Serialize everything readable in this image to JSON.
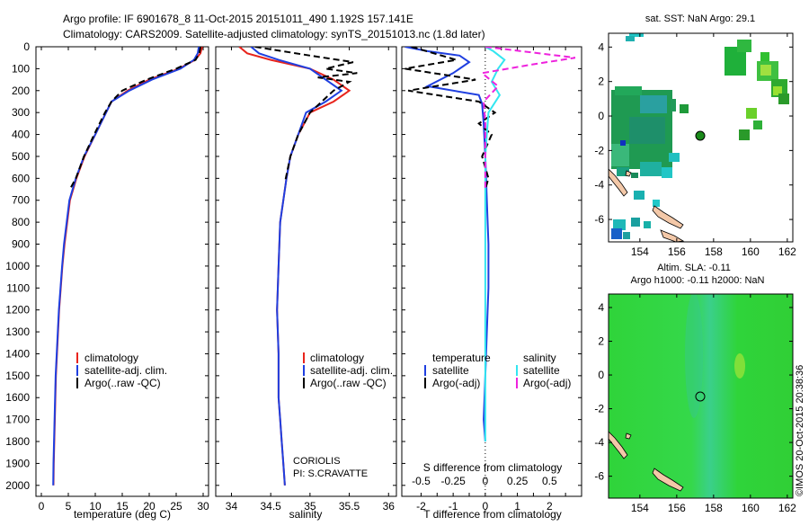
{
  "title": {
    "line1": "Argo profile: IF 6901678_8 11-Oct-2015 20151011_490 1.192S 157.141E",
    "line2": "Climatology: CARS2009. Satellite-adjusted climatology: synTS_20151013.nc (1.8d later)"
  },
  "colors": {
    "clim": "#e8241c",
    "sat": "#1f3fe0",
    "argo": "#000000",
    "sat_s": "#33e6f0",
    "argo_s": "#ee22dd"
  },
  "chart_data": [
    {
      "type": "line",
      "name": "temperature-profile",
      "xlabel": "temperature (deg C)",
      "ylabel": "",
      "xlim": [
        -1,
        31
      ],
      "ylim": [
        2050,
        0
      ],
      "xticks": [
        0,
        5,
        10,
        15,
        20,
        25,
        30
      ],
      "yticks": [
        0,
        100,
        200,
        300,
        400,
        500,
        600,
        700,
        800,
        900,
        1000,
        1100,
        1200,
        1300,
        1400,
        1500,
        1600,
        1700,
        1800,
        1900,
        2000
      ],
      "legend": {
        "position": "bottom-center",
        "entries": [
          "climatology",
          "satellite-adj. clim.",
          "Argo(..raw -QC)"
        ]
      },
      "series": [
        {
          "name": "climatology",
          "color": "#e8241c",
          "dash": false,
          "x": [
            29.8,
            29.5,
            28.5,
            25.5,
            20.0,
            16.0,
            13.0,
            12.0,
            10.0,
            8.0,
            6.5,
            5.3,
            4.8,
            4.3,
            3.9,
            3.6,
            3.3,
            3.1,
            2.9,
            2.7,
            2.6,
            2.5,
            2.4,
            2.3,
            2.25
          ],
          "y": [
            0,
            30,
            60,
            100,
            150,
            200,
            250,
            300,
            400,
            500,
            600,
            700,
            800,
            900,
            1000,
            1100,
            1200,
            1300,
            1400,
            1500,
            1600,
            1700,
            1800,
            1900,
            2000
          ]
        },
        {
          "name": "satellite-adj. clim.",
          "color": "#1f3fe0",
          "dash": false,
          "x": [
            29.2,
            29.0,
            28.3,
            25.8,
            20.5,
            16.3,
            13.0,
            12.0,
            10.0,
            7.9,
            6.4,
            5.2,
            4.7,
            4.2,
            3.85,
            3.55,
            3.25,
            3.05,
            2.85,
            2.65,
            2.55,
            2.45,
            2.35,
            2.25,
            2.2
          ],
          "y": [
            0,
            30,
            60,
            100,
            150,
            200,
            250,
            300,
            400,
            500,
            600,
            700,
            800,
            900,
            1000,
            1100,
            1200,
            1300,
            1400,
            1500,
            1600,
            1700,
            1800,
            1900,
            2000
          ]
        },
        {
          "name": "Argo(..raw -QC)",
          "color": "#000000",
          "dash": true,
          "x": [
            29.5,
            29.3,
            28.6,
            25.0,
            19.5,
            15.0,
            13.0,
            11.8,
            9.8,
            7.9,
            6.4,
            5.3
          ],
          "y": [
            0,
            30,
            60,
            100,
            150,
            200,
            250,
            300,
            400,
            500,
            600,
            650
          ]
        }
      ]
    },
    {
      "type": "line",
      "name": "salinity-profile",
      "xlabel": "salinity",
      "ylabel": "",
      "xlim": [
        33.8,
        36.1
      ],
      "ylim": [
        2050,
        0
      ],
      "xticks": [
        34,
        34.5,
        35,
        35.5,
        36
      ],
      "legend": {
        "position": "bottom-right",
        "entries": [
          "climatology",
          "satellite-adj. clim.",
          "Argo(..raw -QC)"
        ]
      },
      "annotation": [
        "CORIOLIS",
        "PI: S.CRAVATTE"
      ],
      "series": [
        {
          "name": "climatology",
          "color": "#e8241c",
          "dash": false,
          "x": [
            34.1,
            34.2,
            34.5,
            35.0,
            35.3,
            35.5,
            35.3,
            35.0,
            34.85,
            34.75,
            34.7,
            34.62,
            34.6,
            34.58,
            34.6,
            34.6,
            34.62,
            34.64,
            34.66,
            34.68
          ],
          "y": [
            0,
            30,
            60,
            100,
            150,
            200,
            250,
            300,
            400,
            500,
            600,
            800,
            1000,
            1200,
            1400,
            1600,
            1700,
            1800,
            1900,
            2000
          ]
        },
        {
          "name": "satellite-adj. clim.",
          "color": "#1f3fe0",
          "dash": false,
          "x": [
            34.25,
            34.35,
            34.6,
            35.0,
            35.2,
            35.4,
            35.2,
            34.95,
            34.85,
            34.75,
            34.7,
            34.62,
            34.6,
            34.58,
            34.6,
            34.6,
            34.62,
            34.64,
            34.66,
            34.68
          ],
          "y": [
            0,
            30,
            60,
            100,
            150,
            200,
            250,
            300,
            400,
            500,
            600,
            800,
            1000,
            1200,
            1400,
            1600,
            1700,
            1800,
            1900,
            2000
          ]
        },
        {
          "name": "Argo(..raw -QC)",
          "color": "#000000",
          "dash": true,
          "x": [
            34.3,
            35.0,
            35.55,
            35.2,
            35.6,
            35.1,
            35.5,
            35.3,
            35.0,
            34.85,
            34.75,
            34.68
          ],
          "y": [
            0,
            40,
            70,
            100,
            120,
            140,
            160,
            200,
            300,
            400,
            500,
            620
          ]
        }
      ]
    },
    {
      "type": "line",
      "name": "difference-profile",
      "xlabel": "T difference from climatology",
      "xlabel_top": "S difference from climatology",
      "xlim": [
        -2.6,
        3.0
      ],
      "ylim": [
        2050,
        0
      ],
      "xticks": [
        -2,
        -1.5,
        -1,
        -0.5,
        0,
        0.5,
        1,
        1.5,
        2,
        2.5
      ],
      "xtick_labels_bottom": [
        "-2",
        "-1",
        "0",
        "1",
        "2"
      ],
      "xtick_labels_top": [
        "-0.5",
        "-0.25",
        "0",
        "0.25",
        "0.5"
      ],
      "legend": {
        "position": "bottom",
        "headers": [
          "temperature",
          "salinity"
        ],
        "entries": [
          "satellite",
          "Argo(-adj)",
          "satellite",
          "Argo(-adj)"
        ]
      },
      "series": [
        {
          "name": "temperature satellite",
          "color": "#1f3fe0",
          "dash": false,
          "x": [
            -2.5,
            -1.8,
            -0.8,
            -0.5,
            -1.0,
            -1.8,
            -0.2,
            -0.1,
            -0.05,
            0.0,
            0.05,
            0.1,
            0.1,
            0.05,
            0.0,
            -0.05,
            0.0
          ],
          "y": [
            0,
            20,
            40,
            70,
            120,
            180,
            220,
            260,
            350,
            500,
            700,
            900,
            1100,
            1300,
            1500,
            1700,
            1800
          ]
        },
        {
          "name": "temperature Argo(-adj)",
          "color": "#000000",
          "dash": true,
          "x": [
            -2.3,
            -0.9,
            -2.5,
            -0.3,
            -2.4,
            -0.2,
            0.3,
            -0.2,
            0.2,
            -0.1,
            0.1,
            0.0
          ],
          "y": [
            0,
            60,
            100,
            150,
            200,
            250,
            300,
            350,
            400,
            500,
            600,
            650
          ]
        },
        {
          "name": "salinity satellite",
          "color": "#33e6f0",
          "dash": false,
          "x": [
            0.0,
            0.25,
            0.6,
            0.4,
            0.2,
            0.45,
            0.1,
            0.05,
            0.0,
            0.0,
            0.0,
            0.0,
            0.0,
            0.0,
            0.0
          ],
          "y": [
            0,
            20,
            60,
            100,
            160,
            220,
            300,
            400,
            500,
            700,
            900,
            1100,
            1300,
            1500,
            1800
          ]
        },
        {
          "name": "salinity Argo(-adj)",
          "color": "#ee22dd",
          "dash": true,
          "x": [
            0.0,
            2.8,
            1.5,
            -0.1,
            0.4,
            -0.05,
            0.0,
            0.0,
            0.0
          ],
          "y": [
            0,
            50,
            80,
            120,
            180,
            250,
            350,
            500,
            650
          ]
        }
      ]
    },
    {
      "type": "heatmap",
      "name": "sst-map",
      "title": "sat. SST: NaN Argo: 29.1",
      "xlim": [
        152.3,
        162.3
      ],
      "ylim": [
        -7.3,
        4.8
      ],
      "xticks": [
        154,
        156,
        158,
        160,
        162
      ],
      "yticks": [
        4,
        2,
        0,
        -2,
        -4,
        -6
      ],
      "argo_position": {
        "lon": 157.141,
        "lat": -1.192
      }
    },
    {
      "type": "heatmap",
      "name": "sla-map",
      "title": "Altim. SLA: -0.11",
      "subtitle": "Argo h1000: -0.11 h2000: NaN",
      "xlim": [
        152.3,
        162.3
      ],
      "ylim": [
        -7.3,
        4.8
      ],
      "xticks": [
        154,
        156,
        158,
        160,
        162
      ],
      "yticks": [
        4,
        2,
        0,
        -2,
        -4,
        -6
      ],
      "argo_position": {
        "lon": 157.141,
        "lat": -1.192
      }
    }
  ],
  "credit": "©IMOS 20-Oct-2015 20:38:36"
}
